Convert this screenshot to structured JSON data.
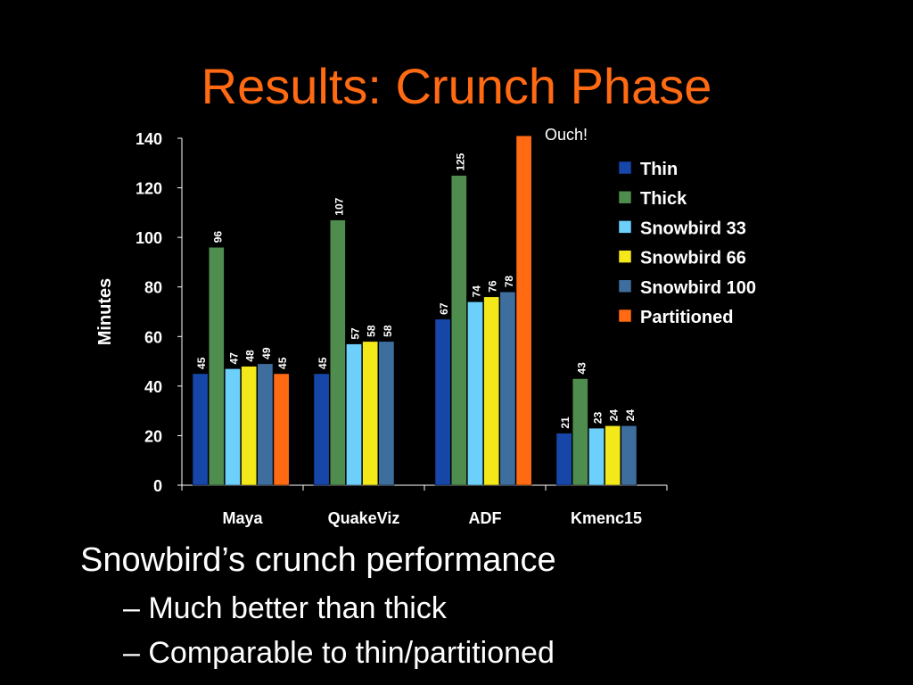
{
  "slide": {
    "title": "Results: Crunch Phase",
    "bullet": "Snowbird’s crunch performance",
    "subbullets": [
      "– Much better than thick",
      "– Comparable to thin/partitioned"
    ]
  },
  "chart_data": {
    "type": "bar",
    "ylabel": "Minutes",
    "ylim": [
      0,
      140
    ],
    "yticks": [
      0,
      20,
      40,
      60,
      80,
      100,
      120,
      140
    ],
    "categories": [
      "Maya",
      "QuakeViz",
      "ADF",
      "Kmenc15"
    ],
    "series": [
      {
        "name": "Thin",
        "color": "#1646a8",
        "values": [
          45,
          45,
          67,
          21
        ],
        "labels": [
          "45",
          "45",
          "67",
          "21"
        ]
      },
      {
        "name": "Thick",
        "color": "#4e8d4e",
        "values": [
          96,
          107,
          125,
          43
        ],
        "labels": [
          "96",
          "107",
          "125",
          "43"
        ]
      },
      {
        "name": "Snowbird 33",
        "color": "#6dd0fb",
        "values": [
          47,
          57,
          74,
          23
        ],
        "labels": [
          "47",
          "57",
          "74",
          "23"
        ]
      },
      {
        "name": "Snowbird 66",
        "color": "#f2e81a",
        "values": [
          48,
          58,
          76,
          24
        ],
        "labels": [
          "48",
          "58",
          "76",
          "24"
        ]
      },
      {
        "name": "Snowbird 100",
        "color": "#3e6e9e",
        "values": [
          49,
          58,
          78,
          24
        ],
        "labels": [
          "49",
          "58",
          "78",
          "24"
        ]
      },
      {
        "name": "Partitioned",
        "color": "#ff6a13",
        "values": [
          45,
          null,
          141,
          null
        ],
        "labels": [
          "45",
          "",
          "",
          ""
        ]
      }
    ],
    "annotation": "Ouch!",
    "legend_position": "right"
  }
}
